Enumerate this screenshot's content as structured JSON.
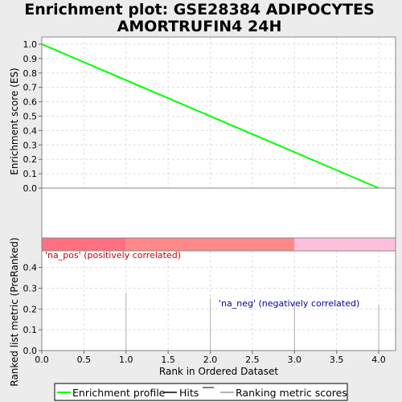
{
  "chart_data": {
    "type": "line",
    "title_line1": "Enrichment plot: GSE28384 ADIPOCYTES",
    "title_line2": "AMORTRUFIN4 24H",
    "top_panel": {
      "ylabel": "Enrichment score (ES)",
      "ylim": [
        0.0,
        1.05
      ],
      "yticks": [
        "0.0",
        "0.1",
        "0.2",
        "0.3",
        "0.4",
        "0.5",
        "0.6",
        "0.7",
        "0.8",
        "0.9",
        "1.0"
      ],
      "ytick_values": [
        0.0,
        0.1,
        0.2,
        0.3,
        0.4,
        0.5,
        0.6,
        0.7,
        0.8,
        0.9,
        1.0
      ],
      "series": [
        {
          "name": "Enrichment profile",
          "color": "#00ff00",
          "x": [
            0,
            4
          ],
          "y": [
            1.0,
            0.0
          ]
        }
      ],
      "grid": true
    },
    "ranking_bar": {
      "segments": [
        {
          "x0": 0,
          "x1": 1,
          "color": "#ff7080"
        },
        {
          "x0": 1,
          "x1": 3,
          "color": "#ff8888"
        },
        {
          "x0": 3,
          "x1": 4.2,
          "color": "#ffc0e0"
        }
      ]
    },
    "bottom_panel": {
      "ylabel": "Ranked list metric (PreRanked)",
      "ylim": [
        0.0,
        0.48
      ],
      "yticks": [
        "0.0",
        "0.1",
        "0.2",
        "0.3",
        "0.4"
      ],
      "ytick_values": [
        0.0,
        0.1,
        0.2,
        0.3,
        0.4
      ],
      "bars": {
        "x": [
          1,
          2,
          3,
          4
        ],
        "y": [
          0.28,
          0.25,
          0.24,
          0.22
        ],
        "color": "#b0b0b0"
      },
      "pos_label": "'na_pos' (positively correlated)",
      "neg_label": "'na_neg' (negatively correlated)",
      "pos_color": "#cc0000",
      "neg_color": "#0000aa",
      "grid": true
    },
    "xlabel": "Rank in Ordered Dataset",
    "xlim": [
      0,
      4.2
    ],
    "xticks": [
      "0.0",
      "0.5",
      "1.0",
      "1.5",
      "2.0",
      "2.5",
      "3.0",
      "3.5",
      "4.0"
    ],
    "xtick_values": [
      0.0,
      0.5,
      1.0,
      1.5,
      2.0,
      2.5,
      3.0,
      3.5,
      4.0
    ],
    "legend": {
      "placement": "bottom",
      "items": [
        {
          "label": "Enrichment profile",
          "color": "#00ff00"
        },
        {
          "label": "Hits",
          "color": "#000000"
        },
        {
          "label": "Ranking metric scores",
          "color": "#b0b0b0"
        }
      ]
    }
  }
}
